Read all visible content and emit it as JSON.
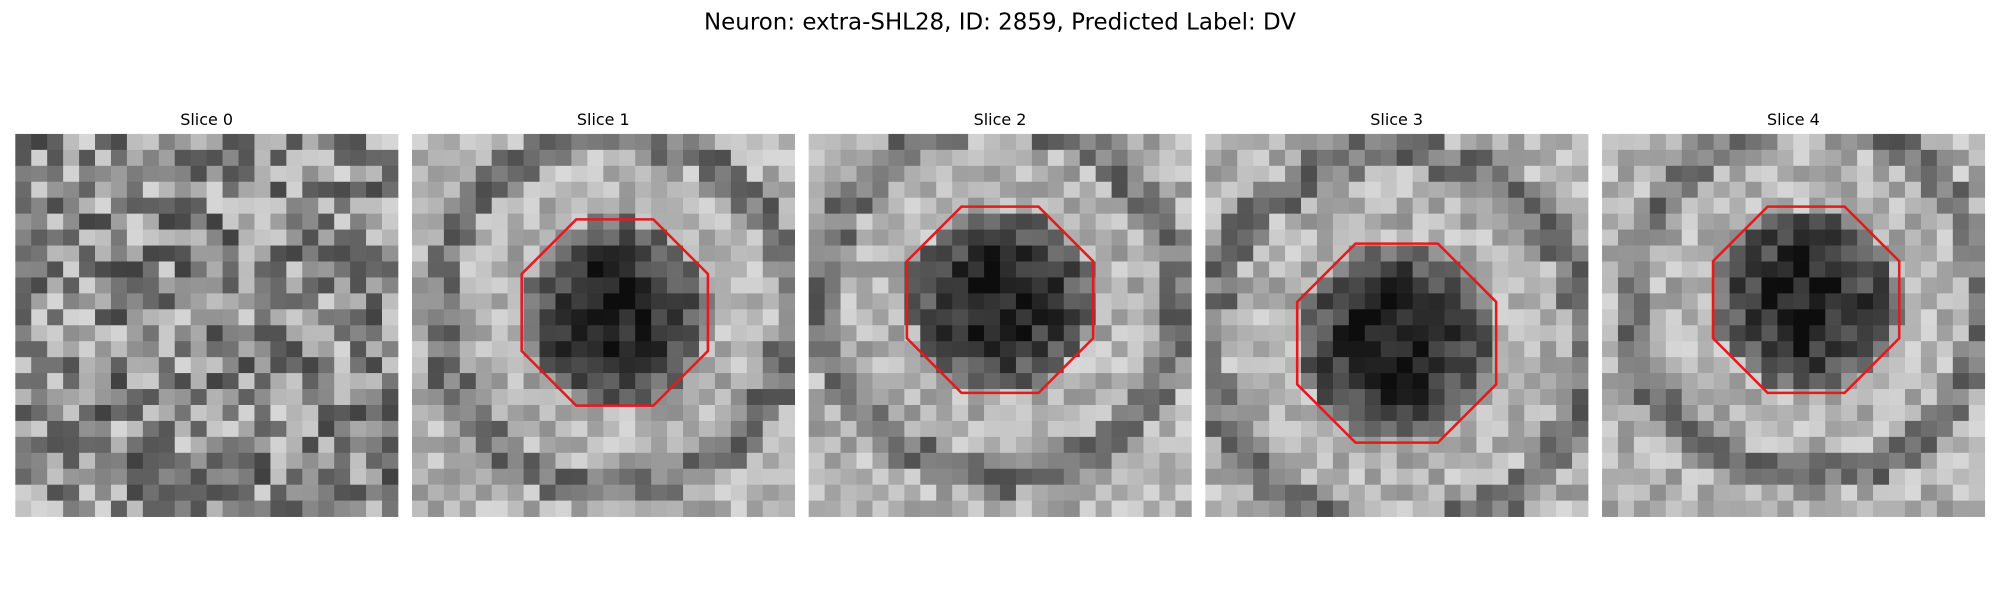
{
  "title": "Neuron: extra-SHL28, ID: 2859, Predicted Label: DV",
  "panels": [
    {
      "title": "Slice 0"
    },
    {
      "title": "Slice 1"
    },
    {
      "title": "Slice 2"
    },
    {
      "title": "Slice 3"
    },
    {
      "title": "Slice 4"
    }
  ]
}
